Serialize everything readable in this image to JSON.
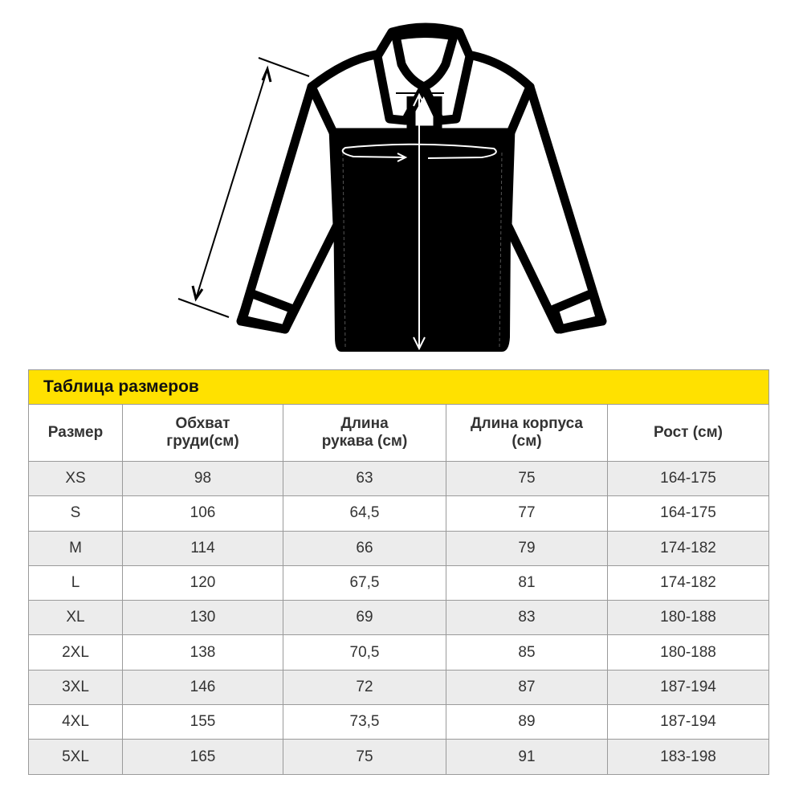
{
  "table": {
    "title": "Таблица размеров",
    "headers": [
      "Размер",
      "Обхват груди(см)",
      "Длина рукава (см)",
      "Длина корпуса (см)",
      "Рост (см)"
    ],
    "header_lines": [
      [
        "Размер"
      ],
      [
        "Обхват",
        "груди(см)"
      ],
      [
        "Длина",
        "рукава (см)"
      ],
      [
        "Длина корпуса",
        "(см)"
      ],
      [
        "Рост (см)"
      ]
    ],
    "rows": [
      [
        "XS",
        "98",
        "63",
        "75",
        "164-175"
      ],
      [
        "S",
        "106",
        "64,5",
        "77",
        "164-175"
      ],
      [
        "M",
        "114",
        "66",
        "79",
        "174-182"
      ],
      [
        "L",
        "120",
        "67,5",
        "81",
        "174-182"
      ],
      [
        "XL",
        "130",
        "69",
        "83",
        "180-188"
      ],
      [
        "2XL",
        "138",
        "70,5",
        "85",
        "180-188"
      ],
      [
        "3XL",
        "146",
        "72",
        "87",
        "187-194"
      ],
      [
        "4XL",
        "155",
        "73,5",
        "89",
        "187-194"
      ],
      [
        "5XL",
        "165",
        "75",
        "91",
        "183-198"
      ]
    ]
  },
  "colors": {
    "title_bar": "#ffe100",
    "stripe": "#ececec"
  },
  "illustration": {
    "icon": "jacket-measurement-icon"
  }
}
